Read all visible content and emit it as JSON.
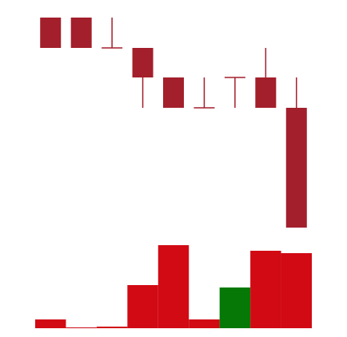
{
  "chart_data": {
    "type": "candlestick",
    "open": [
      278,
      278,
      240,
      240,
      203,
      165,
      203,
      203,
      165
    ],
    "high": [
      278,
      278,
      278,
      240,
      203,
      203,
      203,
      240,
      203
    ],
    "low": [
      240,
      240,
      240,
      165,
      165,
      165,
      165,
      165,
      15
    ],
    "close": [
      240,
      240,
      240,
      203,
      165,
      165,
      203,
      165,
      15
    ],
    "ylim": [
      0,
      280
    ],
    "candle_color": "#a31f2b",
    "volume": [
      11,
      1,
      2,
      54,
      104,
      11,
      51,
      97,
      94
    ],
    "volume_colors": [
      "#d10a14",
      "#d10a14",
      "#d10a14",
      "#d10a14",
      "#d10a14",
      "#d10a14",
      "#067806",
      "#d10a14",
      "#d10a14"
    ],
    "volume_lim": [
      0,
      110
    ]
  }
}
